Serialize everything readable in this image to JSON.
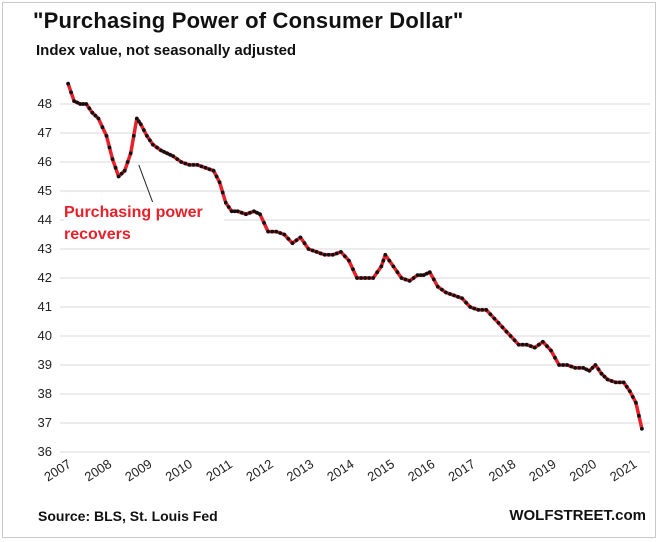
{
  "title": "\"Purchasing Power of Consumer Dollar\"",
  "subtitle": "Index value, not seasonally adjusted",
  "source": "Source: BLS, St. Louis Fed",
  "brand": "WOLFSTREET.com",
  "colors": {
    "line": "#e8202a",
    "markers": "#111111",
    "grid": "#d9d9d9",
    "annotation": "#e8202a"
  },
  "chart_data": {
    "type": "line",
    "title": "\"Purchasing Power of Consumer Dollar\"",
    "subtitle": "Index value, not seasonally adjusted",
    "xlabel": "",
    "ylabel": "",
    "xlim": [
      2007,
      2021.6
    ],
    "ylim": [
      36,
      49
    ],
    "x_ticks": [
      2007,
      2008,
      2009,
      2010,
      2011,
      2012,
      2013,
      2014,
      2015,
      2016,
      2017,
      2018,
      2019,
      2020,
      2021
    ],
    "y_ticks": [
      36,
      37,
      38,
      39,
      40,
      41,
      42,
      43,
      44,
      45,
      46,
      47,
      48
    ],
    "grid": "horizontal",
    "legend": "none",
    "annotation": {
      "text": "Purchasing power recovers",
      "x": 2008.95,
      "y": 45.9
    },
    "series": [
      {
        "x": [
          2007.2,
          2007.35,
          2007.5,
          2007.65,
          2007.8,
          2007.95,
          2008.15,
          2008.3,
          2008.45,
          2008.6,
          2008.75,
          2008.9,
          2009.0,
          2009.15,
          2009.3,
          2009.5,
          2009.65,
          2009.8,
          2010.0,
          2010.2,
          2010.4,
          2010.6,
          2010.8,
          2010.95,
          2011.1,
          2011.25,
          2011.4,
          2011.6,
          2011.8,
          2011.95,
          2012.15,
          2012.35,
          2012.55,
          2012.75,
          2012.95,
          2013.15,
          2013.35,
          2013.55,
          2013.75,
          2013.95,
          2014.15,
          2014.35,
          2014.55,
          2014.75,
          2014.95,
          2015.05,
          2015.25,
          2015.45,
          2015.65,
          2015.85,
          2016.0,
          2016.15,
          2016.35,
          2016.55,
          2016.75,
          2016.95,
          2017.15,
          2017.35,
          2017.55,
          2017.75,
          2017.95,
          2018.15,
          2018.35,
          2018.55,
          2018.75,
          2018.95,
          2019.15,
          2019.35,
          2019.55,
          2019.75,
          2019.95,
          2020.1,
          2020.25,
          2020.4,
          2020.55,
          2020.75,
          2020.95,
          2021.1,
          2021.25,
          2021.4
        ],
        "values": [
          48.7,
          48.1,
          48.0,
          48.0,
          47.7,
          47.5,
          46.9,
          46.1,
          45.5,
          45.7,
          46.3,
          47.5,
          47.3,
          46.9,
          46.6,
          46.4,
          46.3,
          46.2,
          46.0,
          45.9,
          45.9,
          45.8,
          45.7,
          45.3,
          44.6,
          44.3,
          44.3,
          44.2,
          44.3,
          44.2,
          43.6,
          43.6,
          43.5,
          43.2,
          43.4,
          43.0,
          42.9,
          42.8,
          42.8,
          42.9,
          42.6,
          42.0,
          42.0,
          42.0,
          42.4,
          42.8,
          42.4,
          42.0,
          41.9,
          42.1,
          42.1,
          42.2,
          41.7,
          41.5,
          41.4,
          41.3,
          41.0,
          40.9,
          40.9,
          40.6,
          40.3,
          40.0,
          39.7,
          39.7,
          39.6,
          39.8,
          39.5,
          39.0,
          39.0,
          38.9,
          38.9,
          38.8,
          39.0,
          38.7,
          38.5,
          38.4,
          38.4,
          38.1,
          37.7,
          36.8
        ]
      }
    ]
  }
}
